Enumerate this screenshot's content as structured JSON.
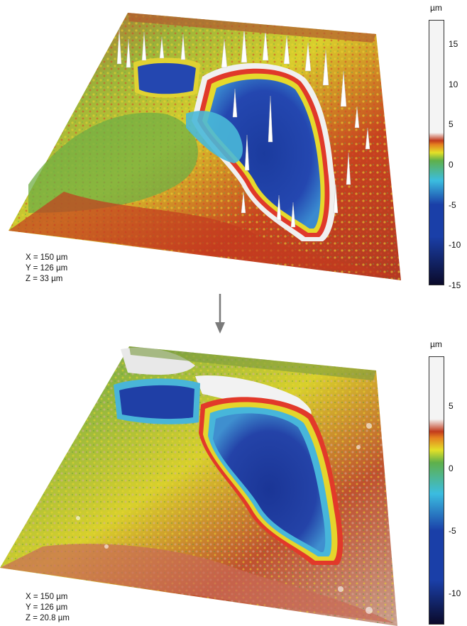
{
  "top": {
    "dims": {
      "x": "X = 150 µm",
      "y": "Y = 126 µm",
      "z": "Z = 33 µm"
    },
    "colorbar": {
      "unit": "µm",
      "ticks": [
        "15",
        "10",
        "5",
        "0",
        "-5",
        "-10",
        "-15"
      ],
      "range": [
        -15,
        18
      ]
    }
  },
  "bottom": {
    "dims": {
      "x": "X = 150 µm",
      "y": "Y = 126 µm",
      "z": "Z = 20.8 µm"
    },
    "colorbar": {
      "unit": "µm",
      "ticks": [
        "5",
        "0",
        "-5",
        "-10"
      ],
      "range": [
        -12.5,
        9
      ]
    }
  },
  "colors": {
    "deep": "#0a0a2a",
    "blue": "#1a3fa8",
    "cyan": "#3bbde0",
    "green": "#5fb04a",
    "yellow": "#e3e028",
    "orange": "#e5801f",
    "red": "#c23a1c",
    "white": "#f4f4f4"
  }
}
